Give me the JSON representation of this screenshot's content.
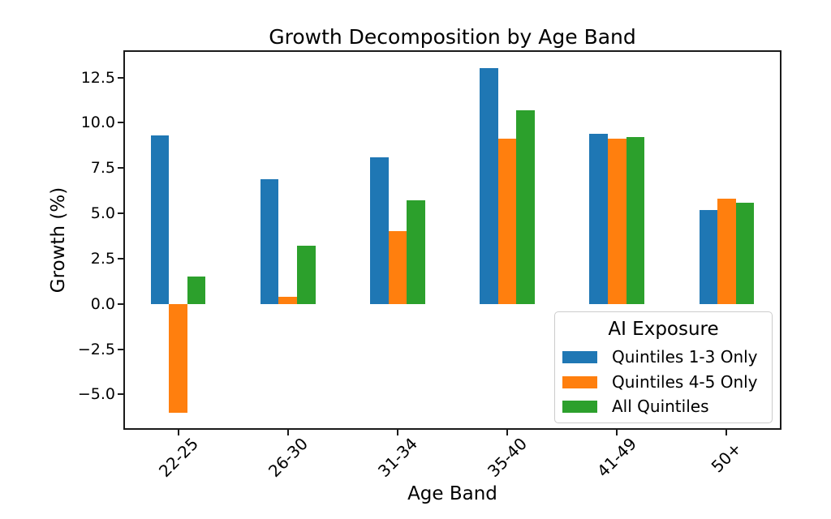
{
  "figure": {
    "title": "Growth Decomposition by Age Band",
    "xlabel": "Age Band",
    "ylabel": "Growth (%)"
  },
  "legend": {
    "title": "AI Exposure",
    "position": "lower right"
  },
  "chart_data": {
    "type": "bar",
    "title": "Growth Decomposition by Age Band",
    "xlabel": "Age Band",
    "ylabel": "Growth (%)",
    "categories": [
      "22-25",
      "26-30",
      "31-34",
      "35-40",
      "41-49",
      "50+"
    ],
    "series": [
      {
        "name": "Quintiles 1-3 Only",
        "color": "#1f77b4",
        "values": [
          9.3,
          6.9,
          8.1,
          13.0,
          9.4,
          5.2
        ]
      },
      {
        "name": "Quintiles 4-5 Only",
        "color": "#ff7f0e",
        "values": [
          -6.0,
          0.4,
          4.0,
          9.1,
          9.1,
          5.8
        ]
      },
      {
        "name": "All Quintiles",
        "color": "#2ca02c",
        "values": [
          1.5,
          3.2,
          5.7,
          10.7,
          9.2,
          5.6
        ]
      }
    ],
    "yticks": [
      12.5,
      10.0,
      7.5,
      5.0,
      2.5,
      0.0,
      -2.5,
      -5.0
    ],
    "ylim": [
      -6.95,
      14.0
    ],
    "grid": false,
    "legend_title": "AI Exposure",
    "legend_position": "lower right"
  }
}
